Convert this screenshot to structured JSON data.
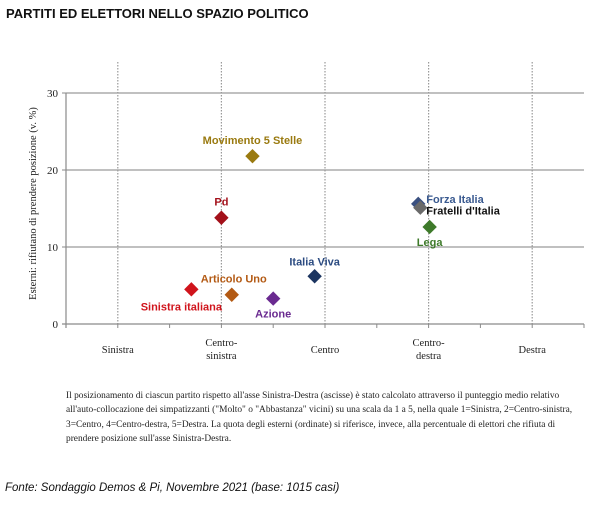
{
  "chart_data": {
    "type": "scatter",
    "title": "PARTITI ED ELETTORI NELLO SPAZIO POLITICO",
    "xlabel": "",
    "ylabel": "Esterni: rifiutano di prendere posizione (v. %)",
    "xlim": [
      0.5,
      5.5
    ],
    "ylim": [
      0,
      30
    ],
    "yticks": [
      0,
      10,
      20,
      30
    ],
    "grid": "horizontal solid gridlines at y ticks; vertical dotted lines at x categories",
    "xcategories": [
      {
        "x": 1,
        "label": [
          "Sinistra"
        ]
      },
      {
        "x": 2,
        "label": [
          "Centro-",
          "sinistra"
        ]
      },
      {
        "x": 3,
        "label": [
          "Centro"
        ]
      },
      {
        "x": 4,
        "label": [
          "Centro-",
          "destra"
        ]
      },
      {
        "x": 5,
        "label": [
          "Destra"
        ]
      }
    ],
    "points": [
      {
        "name": "Movimento 5 Stelle",
        "x": 2.3,
        "y": 21.8,
        "color": "#9a7a10",
        "label_pos": "above"
      },
      {
        "name": "Pd",
        "x": 2.0,
        "y": 13.8,
        "color": "#a3101a",
        "label_pos": "above"
      },
      {
        "name": "Sinistra italiana",
        "x": 1.71,
        "y": 4.5,
        "color": "#d0141c",
        "label_pos": "below"
      },
      {
        "name": "Articolo Uno",
        "x": 2.1,
        "y": 3.8,
        "color": "#b35a14",
        "label_pos": "above"
      },
      {
        "name": "Azione",
        "x": 2.5,
        "y": 3.3,
        "color": "#6a2a90",
        "label_pos": "below"
      },
      {
        "name": "Italia Viva",
        "x": 2.9,
        "y": 6.2,
        "color": "#1c3560",
        "label_pos": "above"
      },
      {
        "name": "Forza Italia",
        "x": 3.9,
        "y": 15.6,
        "color": "#3a5080",
        "label_pos": "right-up"
      },
      {
        "name": "Fratelli d'Italia",
        "x": 3.92,
        "y": 15.1,
        "color": "#6a6a6a",
        "label_pos": "right"
      },
      {
        "name": "Lega",
        "x": 4.01,
        "y": 12.6,
        "color": "#3e7a2a",
        "label_pos": "below"
      }
    ],
    "label_colors": {
      "Movimento 5 Stelle": "#9a7a10",
      "Pd": "#a3101a",
      "Sinistra italiana": "#d0141c",
      "Articolo Uno": "#b35a14",
      "Azione": "#6a2a90",
      "Italia Viva": "#2a4a80",
      "Forza Italia": "#3a5a90",
      "Fratelli d'Italia": "#111111",
      "Lega": "#3e7a2a"
    }
  },
  "note": "Il posizionamento di ciascun partito rispetto all'asse Sinistra-Destra (ascisse) è stato calcolato attraverso il punteggio medio relativo all'auto-collocazione dei simpatizzanti (\"Molto\" o \"Abbastanza\" vicini) su una scala da 1 a 5, nella quale 1=Sinistra, 2=Centro-sinistra, 3=Centro, 4=Centro-destra, 5=Destra. La quota degli esterni (ordinate) si riferisce, invece, alla percentuale di elettori che rifiuta di prendere posizione sull'asse Sinistra-Destra.",
  "source": "Fonte: Sondaggio Demos & Pi, Novembre 2021 (base: 1015 casi)"
}
